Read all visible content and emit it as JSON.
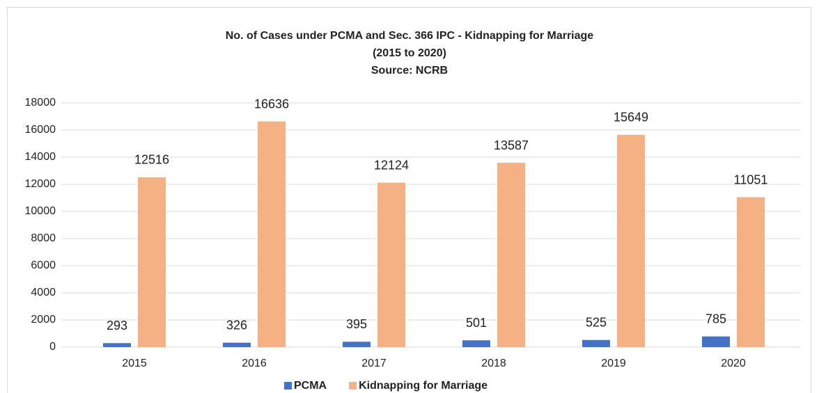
{
  "chart_data": {
    "type": "bar",
    "title": "No. of Cases under PCMA and Sec. 366 IPC - Kidnapping for Marriage",
    "subtitle": "(2015 to 2020)",
    "source": "Source: NCRB",
    "categories": [
      "2015",
      "2016",
      "2017",
      "2018",
      "2019",
      "2020"
    ],
    "series": [
      {
        "name": "PCMA",
        "color": "#4472c4",
        "values": [
          293,
          326,
          395,
          501,
          525,
          785
        ]
      },
      {
        "name": "Kidnapping for Marriage",
        "color": "#f4b183",
        "values": [
          12516,
          16636,
          12124,
          13587,
          15649,
          11051
        ]
      }
    ],
    "ylim": [
      0,
      18000
    ],
    "yticks": [
      0,
      2000,
      4000,
      6000,
      8000,
      10000,
      12000,
      14000,
      16000,
      18000
    ],
    "grid": true,
    "legend": "bottom"
  }
}
